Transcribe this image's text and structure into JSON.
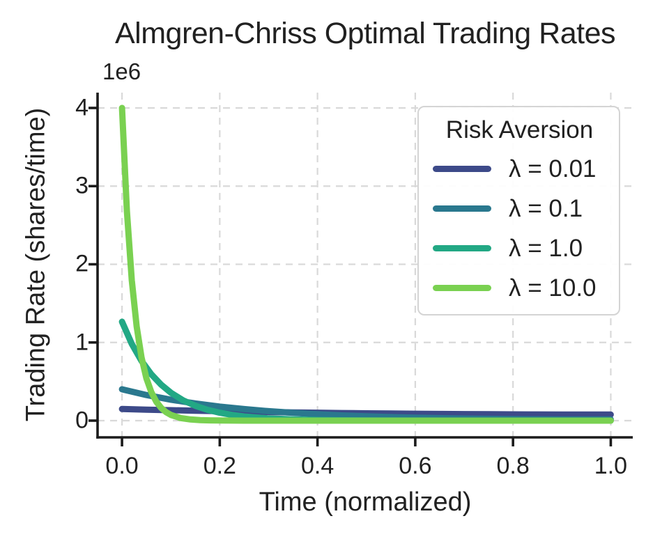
{
  "chart_data": {
    "type": "line",
    "title": "Almgren-Chriss Optimal Trading Rates",
    "xlabel": "Time (normalized)",
    "ylabel": "Trading Rate (shares/time)",
    "y_offset_label": "1e6",
    "grid": true,
    "xlim": [
      -0.05,
      1.045
    ],
    "ylim": [
      -214000,
      4196000
    ],
    "xtick_values": [
      0.0,
      0.2,
      0.4,
      0.6,
      0.8,
      1.0
    ],
    "xtick_labels": [
      "0.0",
      "0.2",
      "0.4",
      "0.6",
      "0.8",
      "1.0"
    ],
    "ytick_values": [
      0,
      1000000,
      2000000,
      3000000,
      4000000
    ],
    "ytick_labels": [
      "0",
      "1",
      "2",
      "3",
      "4"
    ],
    "legend": {
      "title": "Risk Aversion",
      "position": "upper right"
    },
    "colors": {
      "background": "#ffffff",
      "grid": "#d9d9d9",
      "spine": "#1b1b1b",
      "text": "#212121",
      "legend_border": "#d4d4d4"
    },
    "series": [
      {
        "name": "λ = 0.01",
        "lambda": 0.01,
        "color": "#3d4a89",
        "x": [
          0,
          0.05,
          0.1,
          0.15,
          0.2,
          0.25,
          0.3,
          0.35,
          0.4,
          0.45,
          0.5,
          0.55,
          0.6,
          0.65,
          0.7,
          0.75,
          0.8,
          0.85,
          0.9,
          0.95,
          1.0
        ],
        "y": [
          148400,
          140700,
          133500,
          126900,
          120800,
          115200,
          110000,
          105300,
          101000,
          97100,
          93600,
          90500,
          87700,
          85300,
          83200,
          81500,
          80100,
          79000,
          78200,
          77700,
          77600
        ]
      },
      {
        "name": "λ = 0.1",
        "lambda": 0.1,
        "color": "#2a788e",
        "x": [
          0,
          0.05,
          0.1,
          0.15,
          0.2,
          0.25,
          0.3,
          0.35,
          0.4,
          0.45,
          0.5,
          0.55,
          0.6,
          0.65,
          0.7,
          0.75,
          0.8,
          0.85,
          0.9,
          0.95,
          1.0
        ],
        "y": [
          400300,
          327800,
          268400,
          219900,
          180100,
          147600,
          121000,
          99200,
          81400,
          67000,
          55100,
          45600,
          37800,
          31500,
          26500,
          22600,
          19600,
          17400,
          15800,
          15000,
          14700
        ]
      },
      {
        "name": "λ = 1.0",
        "lambda": 1.0,
        "color": "#22a884",
        "x": [
          0,
          0.02,
          0.04,
          0.06,
          0.08,
          0.1,
          0.125,
          0.15,
          0.175,
          0.2,
          0.225,
          0.25,
          0.3,
          0.35,
          0.4,
          0.45,
          0.5,
          0.6,
          0.7,
          0.8,
          0.9,
          1.0
        ],
        "y": [
          1265000,
          982000,
          763000,
          592000,
          460000,
          357000,
          260000,
          190000,
          138000,
          101000,
          73500,
          53500,
          28400,
          15100,
          8000,
          4300,
          2300,
          640,
          180,
          50,
          16,
          8
        ]
      },
      {
        "name": "λ = 10.0",
        "lambda": 10.0,
        "color": "#7ad151",
        "x": [
          0,
          0.01,
          0.02,
          0.03,
          0.04,
          0.05,
          0.06,
          0.07,
          0.08,
          0.09,
          0.1,
          0.12,
          0.14,
          0.16,
          0.18,
          0.2,
          0.25,
          0.3,
          0.4,
          0.5,
          0.6,
          0.7,
          0.8,
          0.9,
          1.0
        ],
        "y": [
          4000000,
          2681000,
          1797000,
          1205000,
          808000,
          541000,
          363000,
          243000,
          163000,
          109000,
          73300,
          32900,
          14800,
          6600,
          3000,
          1340,
          180,
          25,
          1,
          0,
          0,
          0,
          0,
          0,
          0
        ]
      }
    ]
  }
}
